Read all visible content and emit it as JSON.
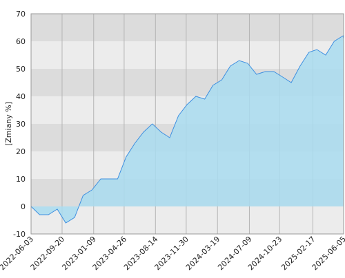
{
  "chart_data": {
    "type": "area",
    "y_label": "[Zmiany %]",
    "x": [
      "2022-06-03",
      "2022-07-03",
      "2022-08-03",
      "2022-09-03",
      "2022-10-03",
      "2022-11-03",
      "2022-12-03",
      "2023-01-03",
      "2023-02-03",
      "2023-03-03",
      "2023-04-03",
      "2023-05-03",
      "2023-06-03",
      "2023-07-03",
      "2023-08-03",
      "2023-09-03",
      "2023-10-03",
      "2023-11-03",
      "2023-12-03",
      "2024-01-03",
      "2024-02-03",
      "2024-03-03",
      "2024-04-03",
      "2024-05-03",
      "2024-06-03",
      "2024-07-03",
      "2024-08-03",
      "2024-09-03",
      "2024-10-03",
      "2024-11-03",
      "2024-12-03",
      "2025-01-03",
      "2025-02-03",
      "2025-03-03",
      "2025-04-03",
      "2025-05-03",
      "2025-06-03",
      "2025-06-05"
    ],
    "values": [
      0,
      -3,
      -3,
      -1,
      -6,
      -4,
      4,
      6,
      10,
      10,
      10,
      18,
      23,
      27,
      30,
      27,
      25,
      33,
      37,
      40,
      39,
      44,
      46,
      51,
      53,
      52,
      48,
      49,
      49,
      47,
      45,
      51,
      56,
      57,
      55,
      60,
      62,
      61
    ],
    "color": "#3d8fe0",
    "fill_color": "#a9dcf0",
    "xlim": [
      "2022-06-03",
      "2025-06-05"
    ],
    "xticks": [
      "2022-06-03",
      "2022-09-20",
      "2023-01-09",
      "2023-04-26",
      "2023-08-14",
      "2023-11-30",
      "2024-03-19",
      "2024-07-09",
      "2024-10-23",
      "2025-02-17",
      "2025-06-05"
    ],
    "ylim": [
      -10,
      70
    ],
    "yticks": [
      -10,
      0,
      10,
      20,
      30,
      40,
      50,
      60,
      70
    ],
    "grid": true
  }
}
